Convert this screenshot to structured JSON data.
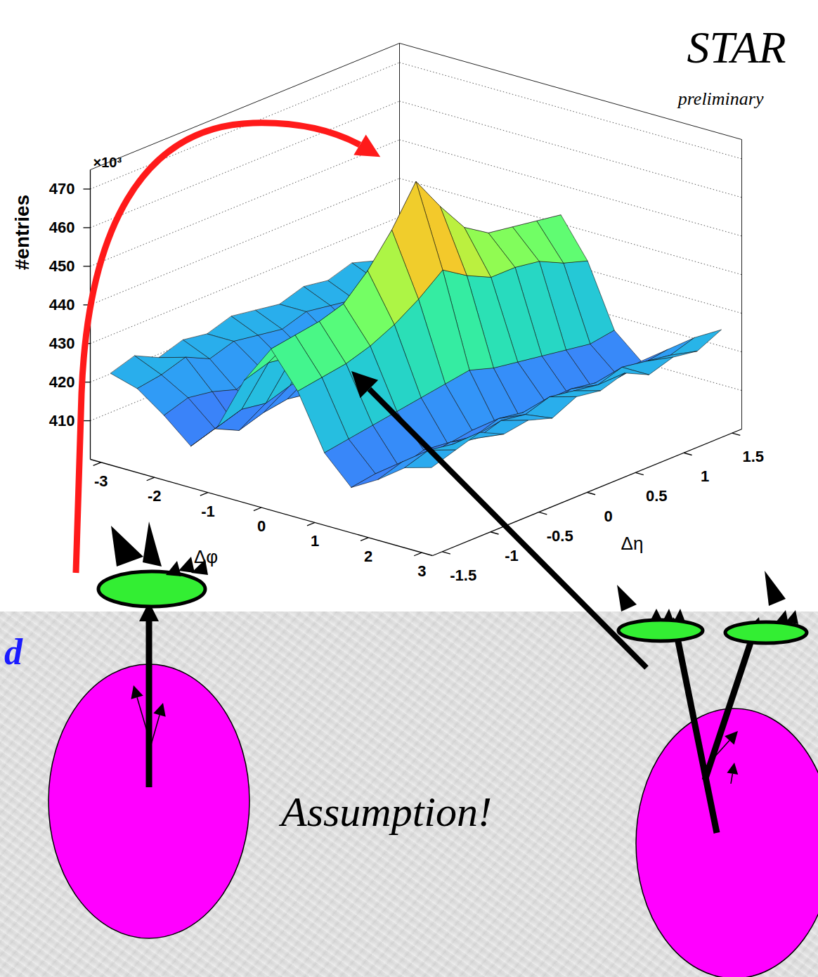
{
  "chart_data": {
    "type": "surface",
    "title": "STAR",
    "subtitle": "preliminary",
    "xlabel": "Δφ",
    "ylabel": "Δη",
    "zlabel": "#entries",
    "zlabel_multiplier": "×10³",
    "x": [
      -3,
      -2.5,
      -2,
      -1.5,
      -1,
      -0.5,
      0,
      0.5,
      1,
      1.5,
      2,
      2.5,
      3
    ],
    "y": [
      -1.5,
      -1.25,
      -1,
      -0.75,
      -0.5,
      -0.25,
      0,
      0.25,
      0.5,
      0.75,
      1,
      1.25,
      1.5
    ],
    "z": [
      [
        422,
        420,
        415,
        409,
        416,
        430,
        440,
        431,
        417,
        410,
        414,
        419,
        421
      ],
      [
        424,
        421,
        417,
        411,
        418,
        432,
        441,
        432,
        418,
        411,
        416,
        421,
        423
      ],
      [
        421,
        423,
        416,
        408,
        417,
        431,
        442,
        433,
        419,
        410,
        415,
        420,
        425
      ],
      [
        423,
        420,
        414,
        410,
        419,
        434,
        444,
        435,
        420,
        412,
        416,
        419,
        422
      ],
      [
        422,
        422,
        417,
        411,
        420,
        437,
        450,
        438,
        421,
        411,
        415,
        421,
        423
      ],
      [
        424,
        421,
        416,
        410,
        421,
        441,
        458,
        442,
        422,
        412,
        417,
        420,
        421
      ],
      [
        423,
        420,
        415,
        409,
        422,
        446,
        468,
        447,
        423,
        411,
        416,
        422,
        424
      ],
      [
        422,
        422,
        417,
        411,
        421,
        442,
        459,
        443,
        421,
        410,
        415,
        421,
        423
      ],
      [
        424,
        421,
        416,
        410,
        420,
        439,
        451,
        440,
        420,
        412,
        417,
        420,
        425
      ],
      [
        423,
        420,
        415,
        409,
        419,
        437,
        447,
        440,
        419,
        411,
        416,
        422,
        422
      ],
      [
        425,
        422,
        417,
        411,
        418,
        436,
        446,
        439,
        418,
        410,
        415,
        421,
        424
      ],
      [
        423,
        421,
        416,
        410,
        417,
        434,
        445,
        436,
        417,
        411,
        416,
        420,
        423
      ],
      [
        424,
        422,
        417,
        412,
        418,
        433,
        444,
        434,
        418,
        412,
        417,
        422,
        426
      ]
    ],
    "xlim": [
      -3.2,
      3.2
    ],
    "ylim": [
      -1.6,
      1.6
    ],
    "zlim": [
      400,
      475
    ],
    "xticks": [
      -3,
      -2,
      -1,
      0,
      1,
      2,
      3
    ],
    "yticks": [
      -1.5,
      -1,
      -0.5,
      0,
      0.5,
      1,
      1.5
    ],
    "zticks": [
      410,
      420,
      430,
      440,
      450,
      460,
      470
    ],
    "grid": true,
    "annotations": [
      "d",
      "Assumption!"
    ]
  }
}
